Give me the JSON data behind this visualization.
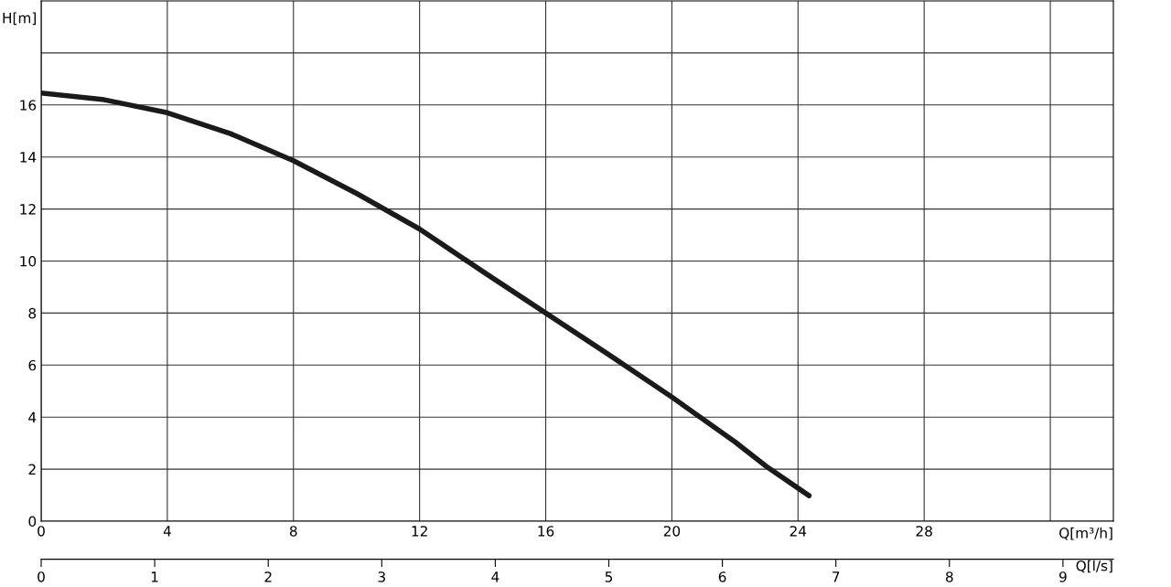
{
  "chart_data": {
    "type": "line",
    "xlabel": "Q[m³/h]",
    "ylabel": "H[m]",
    "x2label": "Q[l/s]",
    "x": [
      0,
      2,
      4,
      6,
      8,
      10,
      12,
      14,
      16,
      18,
      20,
      22,
      23,
      24.35
    ],
    "series": [
      {
        "color": "#1a1a1a",
        "values": [
          16.46,
          16.2,
          15.7,
          14.9,
          13.86,
          12.6,
          11.23,
          9.6,
          8.0,
          6.4,
          4.77,
          3.05,
          2.1,
          0.98
        ]
      }
    ],
    "xlim": [
      0,
      34
    ],
    "xticks": [
      0,
      4,
      8,
      12,
      16,
      20,
      24,
      28,
      {
        "value": 32,
        "label": null
      }
    ],
    "ylim": [
      0,
      20
    ],
    "yticks": [
      0,
      2,
      4,
      6,
      8,
      10,
      12,
      14,
      16,
      {
        "value": 18,
        "label": null
      }
    ],
    "x2lim": [
      0,
      9.444
    ],
    "x2ticks": [
      0,
      1,
      2,
      3,
      4,
      5,
      6,
      7,
      8,
      9
    ],
    "grid": true,
    "legend": false,
    "marker": "none",
    "line_style": "solid"
  }
}
